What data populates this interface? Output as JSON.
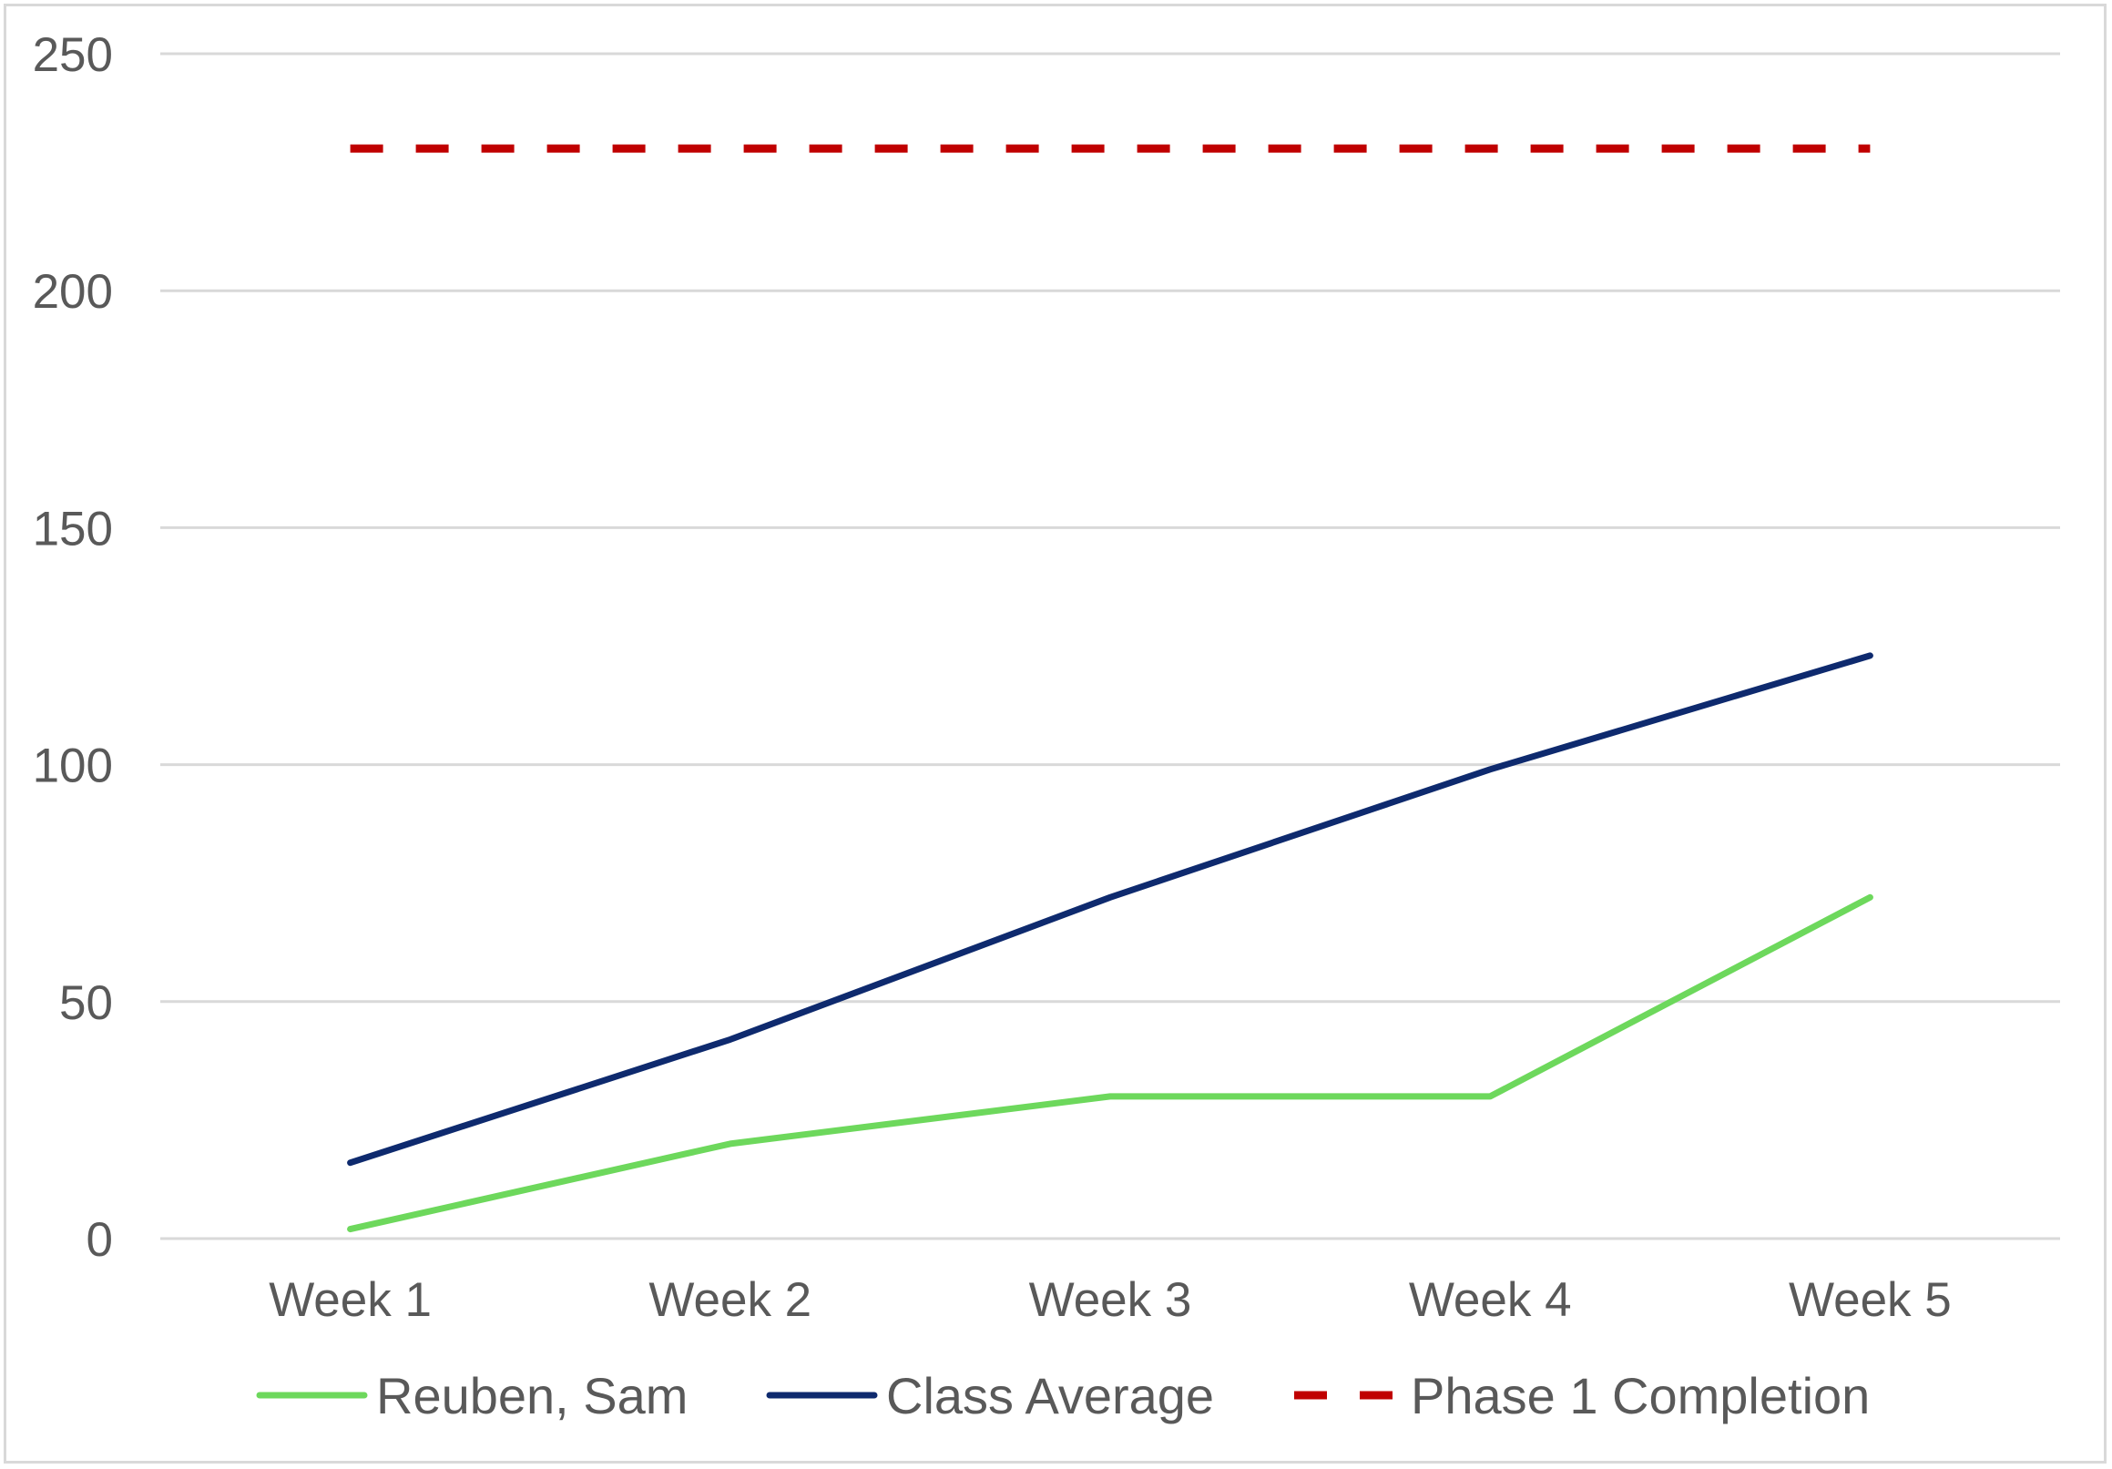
{
  "chart_data": {
    "type": "line",
    "title": "",
    "xlabel": "",
    "ylabel": "",
    "categories": [
      "Week 1",
      "Week 2",
      "Week 3",
      "Week 4",
      "Week 5"
    ],
    "ylim": [
      0,
      250
    ],
    "yticks": [
      0,
      50,
      100,
      150,
      200,
      250
    ],
    "grid": true,
    "legend_position": "bottom",
    "series": [
      {
        "name": "Reuben, Sam",
        "values": [
          2,
          20,
          30,
          30,
          72
        ],
        "color": "#6dd85c",
        "style": "solid"
      },
      {
        "name": "Class Average",
        "values": [
          16,
          42,
          72,
          99,
          123
        ],
        "color": "#0e2a6e",
        "style": "solid"
      },
      {
        "name": "Phase 1 Completion",
        "values": [
          230,
          230,
          230,
          230,
          230
        ],
        "color": "#c00000",
        "style": "dashed"
      }
    ]
  }
}
